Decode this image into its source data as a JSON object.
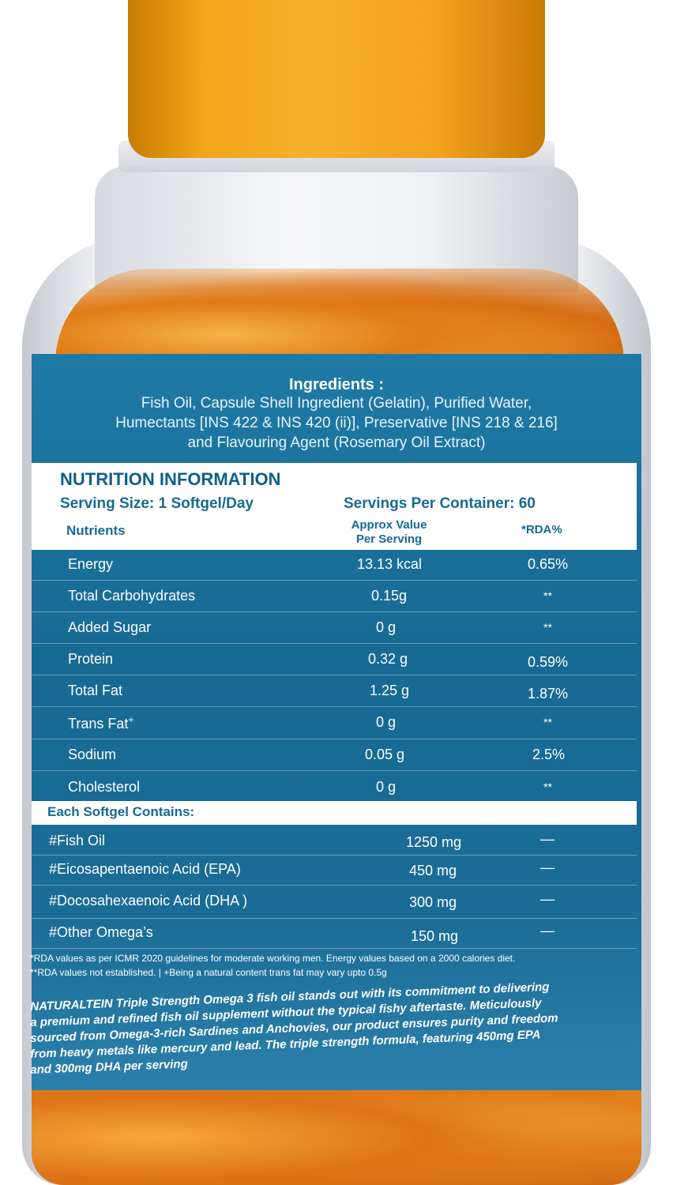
{
  "ingredients": {
    "title": "Ingredients :",
    "lines": [
      "Fish Oil, Capsule Shell Ingredient (Gelatin), Purified Water,",
      "Humectants [INS 422 & INS 420 (ii)], Preservative [INS 218 & 216]",
      "and Flavouring Agent (Rosemary Oil Extract)"
    ]
  },
  "nutrition": {
    "title": "NUTRITION INFORMATION",
    "serving_size": "Serving Size: 1 Softgel/Day",
    "servings_per_container": "Servings Per Container: 60",
    "col_nutrients": "Nutrients",
    "col_value_1": "Approx Value",
    "col_value_2": "Per Serving",
    "col_rda": "*RDA%",
    "rows": [
      {
        "name": "Energy",
        "value": "13.13 kcal",
        "rda": "0.65%"
      },
      {
        "name": "Total Carbohydrates",
        "value": "0.15g",
        "rda": "**"
      },
      {
        "name": "Added Sugar",
        "value": "0 g",
        "rda": "**"
      },
      {
        "name": "Protein",
        "value": "0.32 g",
        "rda": "0.59%"
      },
      {
        "name": "Total Fat",
        "value": "1.25 g",
        "rda": "1.87%"
      },
      {
        "name": "Trans Fat",
        "value": "0 g",
        "rda": "**"
      },
      {
        "name": "Sodium",
        "value": "0.05 g",
        "rda": "2.5%"
      },
      {
        "name": "Cholesterol",
        "value": "0 g",
        "rda": "**"
      }
    ]
  },
  "softgel": {
    "title": "Each Softgel Contains:",
    "rows": [
      {
        "name": "#Fish Oil",
        "value": "1250 mg",
        "rda": "—"
      },
      {
        "name": "#Eicosapentaenoic Acid (EPA)",
        "value": "450 mg",
        "rda": "—"
      },
      {
        "name": "#Docosahexaenoic Acid (DHA )",
        "value": "300 mg",
        "rda": "—"
      },
      {
        "name": "#Other Omega’s",
        "value": "150 mg",
        "rda": "—"
      }
    ]
  },
  "footnotes": {
    "line1": "*RDA values as per ICMR 2020 guidelines for moderate working men. Energy values based on a 2000 calories diet.",
    "line2": "**RDA values not established.   |  +Being a natural content trans fat may vary upto 0.5g"
  },
  "description": {
    "lines": [
      "NATURALTEIN Triple Strength Omega 3 fish oil stands out with its commitment to delivering",
      "a premium and refined fish oil supplement without the typical fishy aftertaste. Meticulously",
      "sourced from Omega-3-rich Sardines and Anchovies, our product ensures purity and freedom",
      "from heavy metals like mercury and lead. The triple strength formula, featuring 450mg EPA",
      "and 300mg DHA per serving"
    ]
  },
  "colors": {
    "cap": "#f2a31f",
    "label": "#1a6c96",
    "label_text": "#176a93"
  }
}
